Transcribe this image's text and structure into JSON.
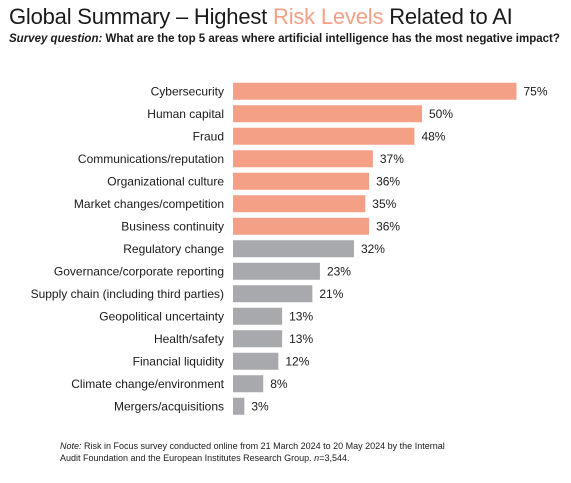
{
  "header": {
    "title_part1": "Global Summary – Highest ",
    "title_highlight": "Risk Levels",
    "title_part2": " Related to AI",
    "subtitle_label": "Survey question:",
    "subtitle_text": " What are the top 5 areas where artificial intelligence has the most negative impact?"
  },
  "chart_data": {
    "type": "bar",
    "orientation": "horizontal",
    "categories": [
      "Cybersecurity",
      "Human capital",
      "Fraud",
      "Communications/reputation",
      "Organizational culture",
      "Market changes/competition",
      "Business continuity",
      "Regulatory change",
      "Governance/corporate reporting",
      "Supply chain (including third parties)",
      "Geopolitical uncertainty",
      "Health/safety",
      "Financial liquidity",
      "Climate change/environment",
      "Mergers/acquisitions"
    ],
    "values": [
      75,
      50,
      48,
      37,
      36,
      35,
      36,
      32,
      23,
      21,
      13,
      13,
      12,
      8,
      3
    ],
    "value_labels": [
      "75%",
      "50%",
      "48%",
      "37%",
      "36%",
      "35%",
      "36%",
      "32%",
      "23%",
      "21%",
      "13%",
      "13%",
      "12%",
      "8%",
      "3%"
    ],
    "highlight_top_n": 7,
    "xlim": [
      0,
      100
    ],
    "grid": false,
    "colors": {
      "highlight": "#f4a087",
      "other": "#a7a9ac"
    }
  },
  "note": {
    "label": "Note:",
    "text1": " Risk in Focus survey conducted online from 21 March 2024 to 20 May 2024 by the Internal",
    "text2": "Audit Foundation and the European Institutes Research Group. ",
    "n_label": "n",
    "n_value": "=3,544."
  }
}
